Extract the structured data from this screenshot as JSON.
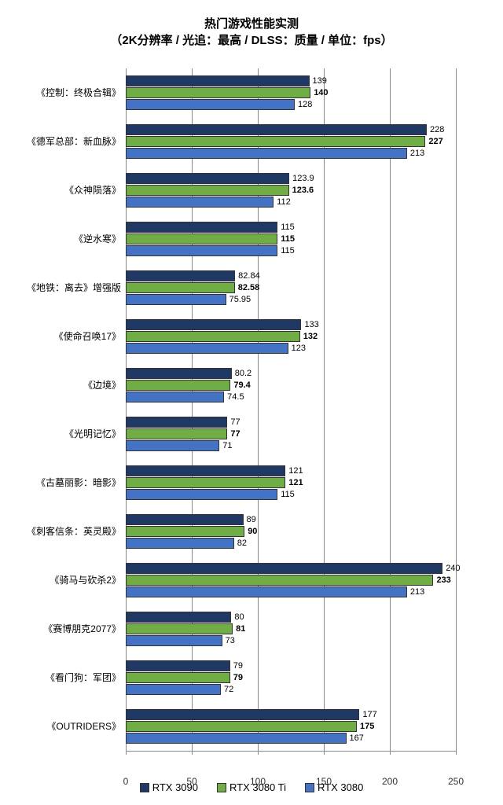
{
  "chart": {
    "type": "bar-grouped-horizontal",
    "title_line1": "热门游戏性能实测",
    "title_line2": "（2K分辨率 / 光追：最高 / DLSS：质量 / 单位：fps）",
    "title_fontsize": 15,
    "label_fontsize": 12,
    "value_fontsize": 11,
    "background_color": "#ffffff",
    "xlim": [
      0,
      250
    ],
    "xtick_step": 50,
    "xticks": [
      0,
      50,
      100,
      150,
      200,
      250
    ],
    "tick_color": "#888888",
    "series": [
      {
        "name": "RTX 3090",
        "color": "#1f3864",
        "bold": false
      },
      {
        "name": "RTX 3080 Ti",
        "color": "#70ad47",
        "bold": true
      },
      {
        "name": "RTX 3080",
        "color": "#4472c4",
        "bold": false
      }
    ],
    "games": [
      {
        "label": "《控制：终极合辑》",
        "values": [
          "139",
          "140",
          "128"
        ]
      },
      {
        "label": "《德军总部：新血脉》",
        "values": [
          "228",
          "227",
          "213"
        ]
      },
      {
        "label": "《众神陨落》",
        "values": [
          "123.9",
          "123.6",
          "112"
        ]
      },
      {
        "label": "《逆水寒》",
        "values": [
          "115",
          "115",
          "115"
        ]
      },
      {
        "label": "《地铁：离去》增强版",
        "values": [
          "82.84",
          "82.58",
          "75.95"
        ]
      },
      {
        "label": "《使命召唤17》",
        "values": [
          "133",
          "132",
          "123"
        ]
      },
      {
        "label": "《边境》",
        "values": [
          "80.2",
          "79.4",
          "74.5"
        ]
      },
      {
        "label": "《光明记忆》",
        "values": [
          "77",
          "77",
          "71"
        ]
      },
      {
        "label": "《古墓丽影：暗影》",
        "values": [
          "121",
          "121",
          "115"
        ]
      },
      {
        "label": "《刺客信条：英灵殿》",
        "values": [
          "89",
          "90",
          "82"
        ]
      },
      {
        "label": "《骑马与砍杀2》",
        "values": [
          "240",
          "233",
          "213"
        ]
      },
      {
        "label": "《赛博朋克2077》",
        "values": [
          "80",
          "81",
          "73"
        ]
      },
      {
        "label": "《看门狗：军团》",
        "values": [
          "79",
          "79",
          "72"
        ]
      },
      {
        "label": "《OUTRIDERS》",
        "values": [
          "177",
          "175",
          "167"
        ]
      }
    ]
  }
}
